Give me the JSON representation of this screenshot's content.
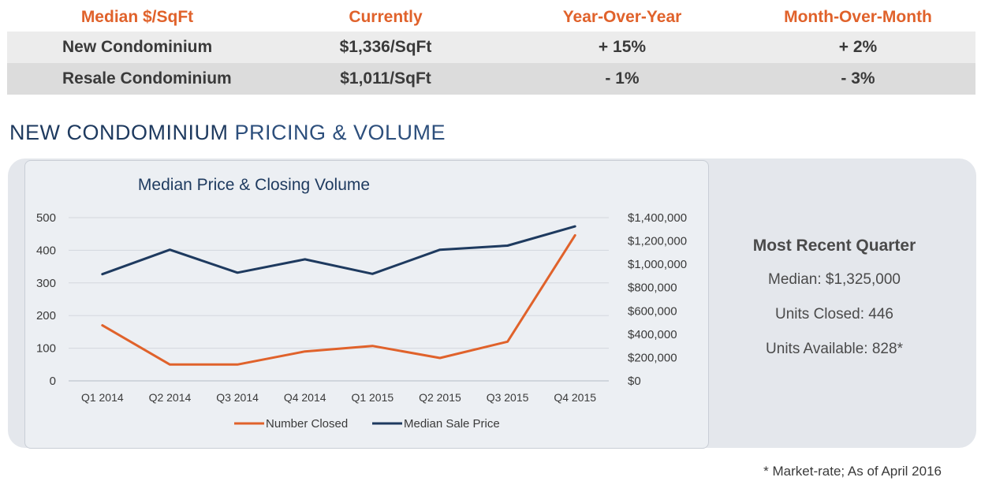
{
  "table": {
    "headers": [
      "Median $/SqFt",
      "Currently",
      "Year-Over-Year",
      "Month-Over-Month"
    ],
    "rows": [
      [
        "New Condominium",
        "$1,336/SqFt",
        "+ 15%",
        "+ 2%"
      ],
      [
        "Resale Condominium",
        "$1,011/SqFt",
        "- 1%",
        "- 3%"
      ]
    ]
  },
  "section": {
    "title_strong": "NEW CONDOMINIUM",
    "title_light": "PRICING & VOLUME"
  },
  "recent_quarter": {
    "title": "Most Recent Quarter",
    "median": "Median:  $1,325,000",
    "units_closed": "Units Closed: 446",
    "units_available": "Units Available: 828*"
  },
  "footnote": "* Market-rate; As of April 2016",
  "colors": {
    "orange": "#e0622b",
    "navy": "#1e3a5f"
  },
  "chart_data": {
    "type": "line",
    "title": "Median Price & Closing Volume",
    "categories": [
      "Q1 2014",
      "Q2 2014",
      "Q3 2014",
      "Q4 2014",
      "Q1 2015",
      "Q2 2015",
      "Q3 2015",
      "Q4 2015"
    ],
    "left_axis": {
      "ylim": [
        0,
        500
      ],
      "ticks": [
        0,
        100,
        200,
        300,
        400,
        500
      ],
      "tick_labels": [
        "0",
        "100",
        "200",
        "300",
        "400",
        "500"
      ]
    },
    "right_axis": {
      "ylim": [
        0,
        1400000
      ],
      "ticks": [
        0,
        200000,
        400000,
        600000,
        800000,
        1000000,
        1200000,
        1400000
      ],
      "tick_labels": [
        "$0",
        "$200,000",
        "$400,000",
        "$600,000",
        "$800,000",
        "$1,000,000",
        "$1,200,000",
        "$1,400,000"
      ]
    },
    "series": [
      {
        "name": "Number Closed",
        "axis": "left",
        "color": "#e0622b",
        "values": [
          170,
          50,
          50,
          90,
          107,
          70,
          120,
          446
        ]
      },
      {
        "name": "Median Sale Price",
        "axis": "right",
        "color": "#1e3a5f",
        "values": [
          915000,
          1125000,
          928000,
          1042000,
          918000,
          1125000,
          1160000,
          1325000
        ]
      }
    ],
    "grid": true,
    "legend_position": "bottom"
  }
}
